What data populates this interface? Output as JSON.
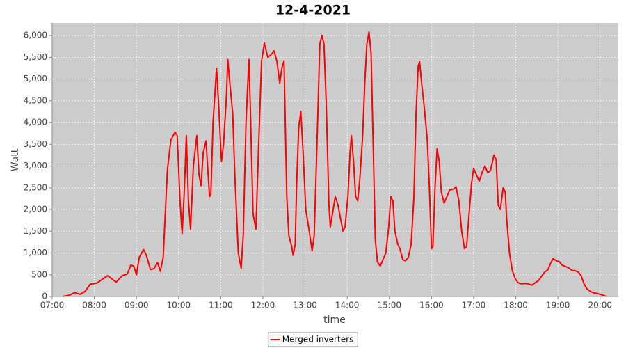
{
  "chart_data": {
    "type": "line",
    "title": "12-4-2021",
    "x_label": "time",
    "y_label": "Watt",
    "xlim": [
      "07:00",
      "20:26"
    ],
    "xticks": [
      "07:00",
      "08:00",
      "09:00",
      "10:00",
      "11:00",
      "12:00",
      "13:00",
      "14:00",
      "15:00",
      "16:00",
      "17:00",
      "18:00",
      "19:00",
      "20:00"
    ],
    "ylim": [
      0,
      6290
    ],
    "yticks": [
      0,
      500,
      {
        "value": 1000,
        "label": "1,000"
      },
      {
        "value": 1500,
        "label": "1,500"
      },
      {
        "value": 2000,
        "label": "2,000"
      },
      {
        "value": 2500,
        "label": "2,500"
      },
      {
        "value": 3000,
        "label": "3,000"
      },
      {
        "value": 3500,
        "label": "3,500"
      },
      {
        "value": 4000,
        "label": "4,000"
      },
      {
        "value": 4500,
        "label": "4,500"
      },
      {
        "value": 5000,
        "label": "5,000"
      },
      {
        "value": 5500,
        "label": "5,500"
      },
      {
        "value": 6000,
        "label": "6,000"
      }
    ],
    "grid": true,
    "legend": "bottom",
    "x": [
      "07:15",
      "07:25",
      "07:32",
      "07:40",
      "07:47",
      "07:54",
      "08:04",
      "08:11",
      "08:19",
      "08:24",
      "08:31",
      "08:40",
      "08:47",
      "08:52",
      "08:56",
      "09:00",
      "09:04",
      "09:10",
      "09:14",
      "09:20",
      "09:25",
      "09:30",
      "09:34",
      "09:38",
      "09:44",
      "09:49",
      "09:55",
      "09:58",
      "10:02",
      "10:05",
      "10:08",
      "10:11",
      "10:14",
      "10:17",
      "10:21",
      "10:26",
      "10:29",
      "10:32",
      "10:35",
      "10:39",
      "10:44",
      "10:46",
      "10:49",
      "10:54",
      "10:57",
      "11:01",
      "11:04",
      "11:08",
      "11:10",
      "11:13",
      "11:17",
      "11:20",
      "11:25",
      "11:29",
      "11:32",
      "11:36",
      "11:40",
      "11:42",
      "11:46",
      "11:50",
      "11:54",
      "11:58",
      "12:02",
      "12:07",
      "12:11",
      "12:16",
      "12:20",
      "12:24",
      "12:27",
      "12:30",
      "12:34",
      "12:37",
      "12:41",
      "12:43",
      "12:46",
      "12:48",
      "12:51",
      "12:54",
      "12:57",
      "13:01",
      "13:06",
      "13:10",
      "13:13",
      "13:17",
      "13:21",
      "13:24",
      "13:27",
      "13:30",
      "13:34",
      "13:36",
      "13:39",
      "13:43",
      "13:47",
      "13:51",
      "13:54",
      "13:57",
      "14:01",
      "14:04",
      "14:06",
      "14:09",
      "14:12",
      "14:15",
      "14:18",
      "14:22",
      "14:25",
      "14:28",
      "14:31",
      "14:34",
      "14:37",
      "14:40",
      "14:43",
      "14:47",
      "14:51",
      "14:55",
      "14:59",
      "15:02",
      "15:05",
      "15:08",
      "15:12",
      "15:15",
      "15:19",
      "15:23",
      "15:27",
      "15:31",
      "15:35",
      "15:38",
      "15:41",
      "15:43",
      "15:46",
      "15:50",
      "15:54",
      "15:57",
      "16:00",
      "16:02",
      "16:05",
      "16:08",
      "16:11",
      "16:14",
      "16:18",
      "16:22",
      "16:26",
      "16:31",
      "16:35",
      "16:39",
      "16:43",
      "16:47",
      "16:50",
      "16:53",
      "16:57",
      "17:00",
      "17:04",
      "17:08",
      "17:12",
      "17:16",
      "17:20",
      "17:24",
      "17:29",
      "17:32",
      "17:35",
      "17:38",
      "17:42",
      "17:45",
      "17:47",
      "17:51",
      "17:55",
      "17:59",
      "18:03",
      "18:08",
      "18:13",
      "18:18",
      "18:23",
      "18:28",
      "18:32",
      "18:36",
      "18:41",
      "18:46",
      "18:50",
      "18:53",
      "18:58",
      "19:02",
      "19:06",
      "19:11",
      "19:16",
      "19:20",
      "19:25",
      "19:29",
      "19:33",
      "19:37",
      "19:41",
      "19:46",
      "19:51",
      "19:56",
      "20:00",
      "20:04",
      "20:09"
    ],
    "series": [
      {
        "name": "Merged inverters",
        "color": "#ff0000",
        "values": [
          0,
          30,
          90,
          50,
          120,
          280,
          310,
          390,
          480,
          420,
          330,
          480,
          520,
          720,
          700,
          500,
          900,
          1080,
          950,
          620,
          640,
          780,
          580,
          900,
          2900,
          3600,
          3780,
          3700,
          2200,
          1450,
          2400,
          3700,
          2200,
          1550,
          3000,
          3700,
          2800,
          2550,
          3300,
          3580,
          2300,
          2350,
          4000,
          5250,
          4400,
          3100,
          3500,
          4600,
          5450,
          4900,
          4200,
          2800,
          1000,
          650,
          1400,
          4000,
          5450,
          4400,
          1900,
          1550,
          3500,
          5400,
          5830,
          5500,
          5550,
          5650,
          5400,
          4900,
          5250,
          5420,
          2300,
          1400,
          1150,
          950,
          1200,
          2600,
          3900,
          4250,
          3400,
          2000,
          1500,
          1050,
          1400,
          3500,
          5800,
          6000,
          5800,
          4500,
          2100,
          1600,
          1900,
          2300,
          2100,
          1750,
          1500,
          1600,
          2300,
          3300,
          3700,
          3100,
          2300,
          2200,
          2700,
          3700,
          4900,
          5800,
          6080,
          5600,
          3500,
          1300,
          800,
          700,
          850,
          1000,
          1600,
          2300,
          2200,
          1500,
          1200,
          1100,
          850,
          820,
          900,
          1200,
          2300,
          4200,
          5300,
          5400,
          4900,
          4300,
          3600,
          2500,
          1100,
          1150,
          2500,
          3400,
          3100,
          2400,
          2150,
          2300,
          2450,
          2470,
          2520,
          2200,
          1500,
          1100,
          1150,
          1800,
          2600,
          2950,
          2800,
          2650,
          2850,
          3000,
          2850,
          2900,
          3250,
          3150,
          2100,
          2000,
          2500,
          2400,
          1800,
          1000,
          600,
          420,
          320,
          290,
          300,
          290,
          260,
          320,
          360,
          450,
          560,
          620,
          780,
          870,
          820,
          800,
          720,
          690,
          650,
          600,
          590,
          560,
          480,
          300,
          180,
          120,
          80,
          70,
          50,
          30,
          0
        ]
      }
    ]
  }
}
